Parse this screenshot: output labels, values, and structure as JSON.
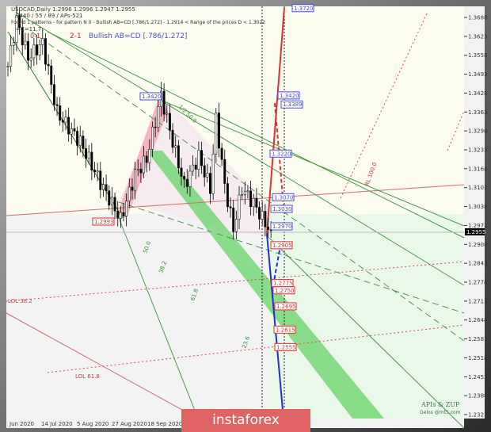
{
  "header": {
    "symbol_line": "USDCAD,Daily  1.2996 1.2996 1.2947 1.2955",
    "indicator_line": "2440 / 55 / 89 / APs-521",
    "pattern_line": "Found 1 patterns  -  for pattern N 0 - Bullish AB=CD [.786/1.272] - 1.2914 < Range of the prices D < 1.3022",
    "extra_line": "=C=11.7",
    "wave_labels": [
      "2-1",
      "0-1"
    ],
    "pattern_title": "Bullish AB=CD [.786/1.272]"
  },
  "watermark": {
    "line1": "APIs & ZUP",
    "line2": "Gelos @mt5.com"
  },
  "brand": "instaforex",
  "colors": {
    "bull_target": "#4a4adf",
    "bear_target": "#e03030",
    "channel": "#5cc85c",
    "pink_band": "#f4a6b4",
    "current_price_bg": "#000000"
  },
  "chart_data": {
    "type": "candlestick",
    "title": "USDCAD,Daily",
    "ylim": [
      1.2323,
      1.3688
    ],
    "y_ticks": [
      "1.3688",
      "1.3623",
      "1.3558",
      "1.3493",
      "1.3428",
      "1.3363",
      "1.3298",
      "1.3233",
      "1.3168",
      "1.3103",
      "1.3038",
      "1.2973",
      "1.2908",
      "1.2843",
      "1.2778",
      "1.2713",
      "1.2648",
      "1.2583",
      "1.2518",
      "1.2453",
      "1.2388",
      "1.2323"
    ],
    "current_price": "1.2955",
    "x_ticks": [
      "Jun 2020",
      "14 Jul 2020",
      "5 Aug 2020",
      "27 Aug 2020",
      "18 Sep 2020"
    ],
    "price_path": [
      [
        0,
        1.352
      ],
      [
        3,
        1.368
      ],
      [
        7,
        1.355
      ],
      [
        12,
        1.36
      ],
      [
        17,
        1.336
      ],
      [
        25,
        1.326
      ],
      [
        32,
        1.312
      ],
      [
        39,
        1.2993
      ],
      [
        44,
        1.315
      ],
      [
        48,
        1.32
      ],
      [
        53,
        1.342
      ],
      [
        57,
        1.326
      ],
      [
        61,
        1.311
      ],
      [
        66,
        1.321
      ],
      [
        70,
        1.31
      ],
      [
        72,
        1.334
      ],
      [
        75,
        1.311
      ],
      [
        78,
        1.296
      ],
      [
        81,
        1.31
      ],
      [
        85,
        1.305
      ],
      [
        89,
        1.298
      ],
      [
        91,
        1.2955
      ]
    ],
    "swing_labels": [
      {
        "price": "1.3420",
        "type": "high"
      },
      {
        "price": "1.2993",
        "type": "low"
      }
    ],
    "upside_targets": [
      "1.3720",
      "1.3420",
      "1.3389",
      "1.3220",
      "1.3070",
      "1.3030",
      "1.2970"
    ],
    "downside_targets": [
      "1.2905",
      "1.2775",
      "1.2750",
      "1.2695",
      "1.2615",
      "1.2555"
    ],
    "level_labels": [
      "LOL 38.2",
      "LOL 61.8",
      "RL 100.0",
      "1/2 50.0",
      "50.0",
      "38.2",
      "61.8",
      "23.6"
    ]
  }
}
